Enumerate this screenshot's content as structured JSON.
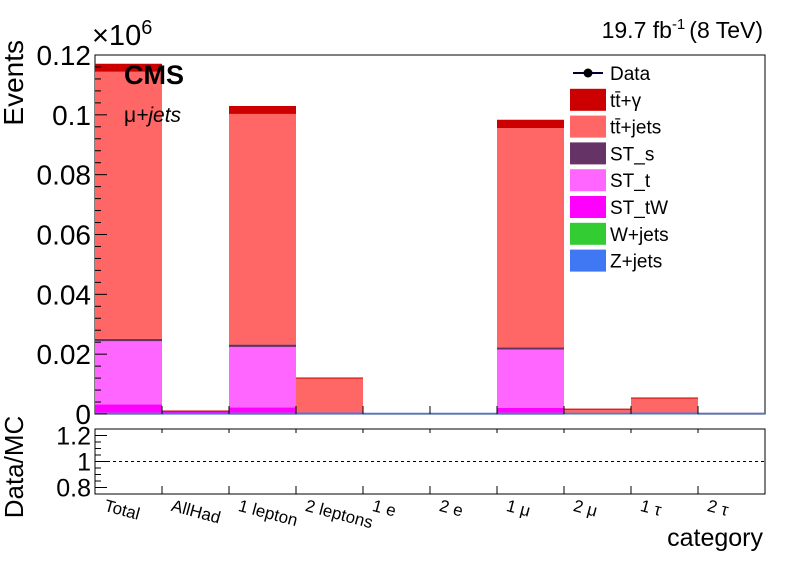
{
  "chart_data": {
    "type": "bar",
    "stacked": true,
    "header": {
      "lumi": "19.7 fb",
      "lumi_sup": "-1",
      "energy": "(8 TeV)",
      "exponent_base": "×10",
      "exponent_power": "6"
    },
    "experiment": "CMS",
    "channel_mu": "μ",
    "channel_rest": "+jets",
    "ylabel": "Events",
    "ratio_ylabel": "Data/MC",
    "xlabel": "category",
    "ylim": [
      0,
      0.12
    ],
    "yticks": [
      {
        "v": 0,
        "label": "0"
      },
      {
        "v": 0.02,
        "label": "0.02"
      },
      {
        "v": 0.04,
        "label": "0.04"
      },
      {
        "v": 0.06,
        "label": "0.06"
      },
      {
        "v": 0.08,
        "label": "0.08"
      },
      {
        "v": 0.1,
        "label": "0.1"
      },
      {
        "v": 0.12,
        "label": "0.12"
      }
    ],
    "ratio_ylim": [
      0.75,
      1.25
    ],
    "ratio_yticks": [
      {
        "v": 0.8,
        "label": "0.8"
      },
      {
        "v": 1.0,
        "label": "1"
      },
      {
        "v": 1.2,
        "label": "1.2"
      }
    ],
    "ratio_reference": 1.0,
    "categories": [
      "Total",
      "AllHad",
      "1 lepton",
      "2 leptons",
      "1 e",
      "2 e",
      "1 μ",
      "2 μ",
      "1 τ",
      "2 τ"
    ],
    "series": [
      {
        "name": "Z+jets",
        "color": "#3f78f2",
        "values": [
          0.0002,
          0.0001,
          0.0002,
          0.0001,
          0,
          0,
          0.0002,
          5e-05,
          5e-05,
          0
        ]
      },
      {
        "name": "W+jets",
        "color": "#33cc33",
        "values": [
          0.0002,
          0.0001,
          0.0002,
          0.0001,
          0,
          0,
          0.0002,
          5e-05,
          5e-05,
          0
        ]
      },
      {
        "name": "ST_tW",
        "color": "#ff00ff",
        "values": [
          0.0028,
          0.0008,
          0.0018,
          0.0002,
          0,
          0,
          0.0017,
          0.0001,
          0.0002,
          0
        ]
      },
      {
        "name": "ST_t",
        "color": "#ff66ff",
        "values": [
          0.0214,
          0.0,
          0.0205,
          0.0001,
          0,
          0,
          0.0197,
          0.0001,
          0.0002,
          0
        ]
      },
      {
        "name": "ST_s",
        "color": "#663366",
        "values": [
          0.0005,
          0.0,
          0.0005,
          5e-05,
          0,
          0,
          0.0005,
          5e-05,
          5e-05,
          0
        ]
      },
      {
        "name": "tt̄+jets",
        "color": "#ff6666",
        "values": [
          0.0893,
          0.0,
          0.0771,
          0.0113,
          0,
          0,
          0.0733,
          0.0012,
          0.0046,
          0.0002
        ]
      },
      {
        "name": "tt̄+γ",
        "color": "#cc0000",
        "values": [
          0.0025,
          0.0,
          0.0025,
          0.0002,
          0,
          0,
          0.0026,
          0.0001,
          0.0002,
          0
        ]
      }
    ],
    "legend_placement": "top-right",
    "legend": [
      {
        "label": "Data",
        "kind": "marker"
      },
      {
        "label": "tt̄+γ",
        "kind": "box",
        "color": "#cc0000"
      },
      {
        "label": "tt̄+jets",
        "kind": "box",
        "color": "#ff6666"
      },
      {
        "label": "ST_s",
        "kind": "box",
        "color": "#663366"
      },
      {
        "label": "ST_t",
        "kind": "box",
        "color": "#ff66ff"
      },
      {
        "label": "ST_tW",
        "kind": "box",
        "color": "#ff00ff"
      },
      {
        "label": "W+jets",
        "kind": "box",
        "color": "#33cc33"
      },
      {
        "label": "Z+jets",
        "kind": "box",
        "color": "#3f78f2"
      }
    ],
    "grid": false
  }
}
